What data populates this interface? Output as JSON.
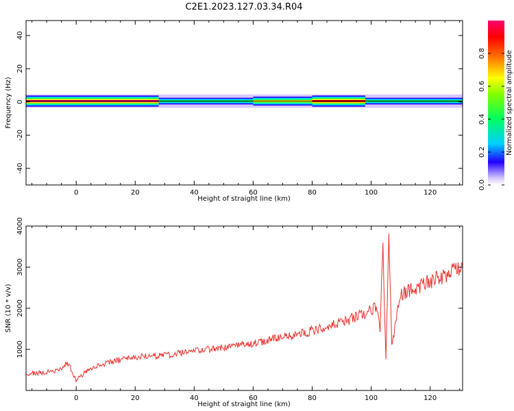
{
  "title": "C2E1.2023.127.03.34.R04",
  "chart_data": [
    {
      "type": "heatmap",
      "xlabel": "Height of straight line (km)",
      "ylabel": "Frequency (Hz)",
      "xlim": [
        -17,
        131
      ],
      "ylim": [
        -50,
        49
      ],
      "xticks": [
        0,
        20,
        40,
        60,
        80,
        100,
        120
      ],
      "yticks": [
        -40,
        -20,
        0,
        20,
        40
      ],
      "grid": false,
      "colorbar": {
        "label": "Normalized spectral amplitude",
        "range": [
          0,
          1
        ],
        "ticks": [
          0.0,
          0.2,
          0.4,
          0.6,
          0.8
        ]
      },
      "band": {
        "center_hz": 0.5,
        "half_width_hz": 4,
        "segments": [
          {
            "x0": -17,
            "x1": 28,
            "peak": 1.0
          },
          {
            "x0": 28,
            "x1": 60,
            "peak": 0.45
          },
          {
            "x0": 60,
            "x1": 80,
            "peak": 0.65
          },
          {
            "x0": 80,
            "x1": 98,
            "peak": 0.95
          },
          {
            "x0": 98,
            "x1": 131,
            "peak": 0.4
          }
        ]
      }
    },
    {
      "type": "line",
      "xlabel": "Height of straight line (km)",
      "ylabel": "SNR (10 * v/v)",
      "xlim": [
        -17,
        131
      ],
      "ylim": [
        0,
        4000
      ],
      "xticks": [
        0,
        20,
        40,
        60,
        80,
        100,
        120
      ],
      "yticks": [
        1000,
        2000,
        3000,
        4000
      ],
      "grid": false,
      "series": [
        {
          "color": "#e8302b",
          "x": [
            -17,
            -10,
            -5,
            -3,
            0,
            5,
            10,
            15,
            20,
            25,
            30,
            40,
            50,
            60,
            70,
            80,
            90,
            95,
            100,
            102,
            103,
            104,
            105,
            106,
            107,
            110,
            120,
            131
          ],
          "y": [
            400,
            450,
            500,
            700,
            250,
            550,
            650,
            750,
            800,
            850,
            850,
            950,
            1050,
            1150,
            1300,
            1450,
            1650,
            1800,
            1950,
            2050,
            1500,
            3600,
            700,
            3900,
            1100,
            2350,
            2650,
            3000
          ]
        }
      ]
    }
  ]
}
